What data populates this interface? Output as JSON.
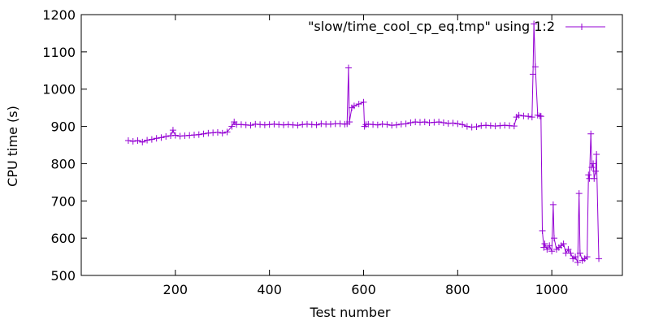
{
  "chart_data": {
    "type": "line",
    "title": "",
    "xlabel": "Test number",
    "ylabel": "CPU time (s)",
    "xlim": [
      0,
      1150
    ],
    "ylim": [
      500,
      1200
    ],
    "xticks": [
      200,
      400,
      600,
      800,
      1000
    ],
    "yticks": [
      500,
      600,
      700,
      800,
      900,
      1000,
      1100,
      1200
    ],
    "grid": false,
    "legend_position": "top-right",
    "series": [
      {
        "name": "\"slow/time_cool_cp_eq.tmp\" using 1:2",
        "color": "#9400d3",
        "marker": "plus",
        "x": [
          100,
          110,
          120,
          130,
          140,
          150,
          160,
          170,
          180,
          190,
          195,
          200,
          210,
          220,
          230,
          240,
          250,
          260,
          270,
          280,
          290,
          300,
          310,
          320,
          325,
          330,
          340,
          350,
          360,
          370,
          380,
          390,
          400,
          410,
          420,
          430,
          440,
          450,
          460,
          470,
          480,
          490,
          500,
          510,
          520,
          530,
          540,
          550,
          560,
          565,
          568,
          570,
          575,
          580,
          590,
          600,
          602,
          605,
          610,
          620,
          630,
          640,
          650,
          660,
          670,
          680,
          690,
          700,
          710,
          720,
          730,
          740,
          750,
          760,
          770,
          780,
          790,
          800,
          810,
          820,
          830,
          840,
          850,
          860,
          870,
          880,
          890,
          900,
          910,
          920,
          925,
          930,
          940,
          950,
          958,
          960,
          962,
          965,
          970,
          975,
          977,
          980,
          983,
          985,
          990,
          995,
          1000,
          1003,
          1005,
          1010,
          1015,
          1020,
          1025,
          1030,
          1035,
          1040,
          1045,
          1050,
          1055,
          1058,
          1060,
          1065,
          1070,
          1075,
          1078,
          1080,
          1083,
          1085,
          1088,
          1090,
          1093,
          1095,
          1100
        ],
        "y": [
          862,
          860,
          862,
          858,
          863,
          865,
          868,
          870,
          873,
          875,
          890,
          876,
          874,
          875,
          876,
          877,
          878,
          880,
          882,
          883,
          884,
          882,
          885,
          900,
          912,
          905,
          905,
          904,
          903,
          906,
          905,
          904,
          905,
          906,
          905,
          904,
          905,
          904,
          903,
          905,
          906,
          905,
          904,
          907,
          906,
          906,
          907,
          907,
          906,
          907,
          1057,
          912,
          950,
          955,
          960,
          965,
          900,
          905,
          906,
          905,
          904,
          906,
          905,
          903,
          904,
          906,
          907,
          910,
          912,
          911,
          912,
          910,
          911,
          912,
          910,
          908,
          909,
          907,
          905,
          900,
          898,
          899,
          902,
          903,
          902,
          901,
          902,
          903,
          902,
          901,
          925,
          930,
          928,
          927,
          925,
          1040,
          1175,
          1060,
          930,
          928,
          927,
          620,
          575,
          585,
          570,
          580,
          565,
          690,
          600,
          570,
          575,
          580,
          585,
          560,
          570,
          560,
          545,
          550,
          535,
          720,
          560,
          540,
          545,
          550,
          770,
          760,
          880,
          790,
          800,
          760,
          780,
          825,
          545
        ]
      }
    ]
  }
}
